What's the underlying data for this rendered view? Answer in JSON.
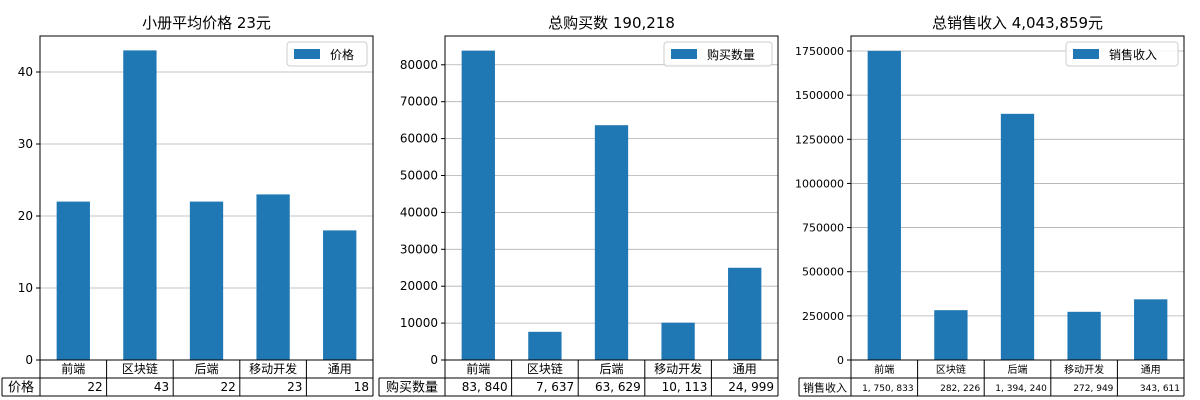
{
  "chart_data": [
    {
      "type": "bar",
      "title": "小册平均价格 23元",
      "categories": [
        "前端",
        "区块链",
        "后端",
        "移动开发",
        "通用"
      ],
      "series": [
        {
          "name": "价格",
          "values": [
            22,
            43,
            22,
            23,
            18
          ]
        }
      ],
      "value_labels": [
        "22",
        "43",
        "22",
        "23",
        "18"
      ],
      "ylim": [
        0,
        45
      ],
      "yticks": [
        0,
        10,
        20,
        30,
        40
      ],
      "ytick_labels": [
        "0",
        "10",
        "20",
        "30",
        "40"
      ],
      "grid": true,
      "legend": "top-right",
      "table_row_label": "价格",
      "color": "#1f77b4"
    },
    {
      "type": "bar",
      "title": "总购买数 190,218",
      "categories": [
        "前端",
        "区块链",
        "后端",
        "移动开发",
        "通用"
      ],
      "series": [
        {
          "name": "购买数量",
          "values": [
            83840,
            7637,
            63629,
            10113,
            24999
          ]
        }
      ],
      "value_labels": [
        "83, 840",
        "7, 637",
        "63, 629",
        "10, 113",
        "24, 999"
      ],
      "ylim": [
        0,
        87800
      ],
      "yticks": [
        0,
        10000,
        20000,
        30000,
        40000,
        50000,
        60000,
        70000,
        80000
      ],
      "ytick_labels": [
        "0",
        "10000",
        "20000",
        "30000",
        "40000",
        "50000",
        "60000",
        "70000",
        "80000"
      ],
      "grid": true,
      "legend": "top-right",
      "table_row_label": "购买数量",
      "color": "#1f77b4"
    },
    {
      "type": "bar",
      "title": "总销售收入 4,043,859元",
      "categories": [
        "前端",
        "区块链",
        "后端",
        "移动开发",
        "通用"
      ],
      "series": [
        {
          "name": "销售收入",
          "values": [
            1750833,
            282226,
            1394240,
            272949,
            343611
          ]
        }
      ],
      "value_labels": [
        "1, 750, 833",
        "282, 226",
        "1, 394, 240",
        "272, 949",
        "343, 611"
      ],
      "ylim": [
        0,
        1835000
      ],
      "yticks": [
        0,
        250000,
        500000,
        750000,
        1000000,
        1250000,
        1500000,
        1750000
      ],
      "ytick_labels": [
        "0",
        "250000",
        "500000",
        "750000",
        "1000000",
        "1250000",
        "1500000",
        "1750000"
      ],
      "grid": true,
      "legend": "top-right",
      "table_row_label": "销售收入",
      "color": "#1f77b4"
    }
  ]
}
